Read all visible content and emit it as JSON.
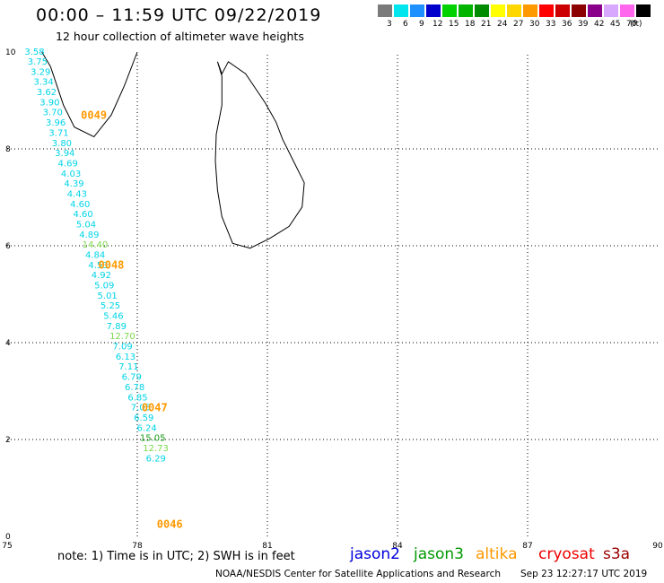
{
  "title": "00:00 – 11:59 UTC 09/22/2019",
  "subtitle": "12 hour collection of altimeter wave heights",
  "scale": {
    "unit": "(ft)",
    "steps": [
      {
        "label": "3",
        "color": "#7a7a7a"
      },
      {
        "label": "6",
        "color": "#00e5ee"
      },
      {
        "label": "9",
        "color": "#1e90ff"
      },
      {
        "label": "12",
        "color": "#0000cd"
      },
      {
        "label": "15",
        "color": "#00d200"
      },
      {
        "label": "18",
        "color": "#00b400"
      },
      {
        "label": "21",
        "color": "#008c00"
      },
      {
        "label": "24",
        "color": "#ffff00"
      },
      {
        "label": "27",
        "color": "#ffd700"
      },
      {
        "label": "30",
        "color": "#ff9900"
      },
      {
        "label": "33",
        "color": "#ff0000"
      },
      {
        "label": "36",
        "color": "#cc0000"
      },
      {
        "label": "39",
        "color": "#8b0000"
      },
      {
        "label": "42",
        "color": "#8b008b"
      },
      {
        "label": "45",
        "color": "#d8a8ff"
      },
      {
        "label": "70",
        "color": "#ff66ee"
      },
      {
        "label": "",
        "color": "#000000"
      }
    ]
  },
  "map": {
    "lon_range": [
      75,
      90
    ],
    "lat_range": [
      0,
      10
    ],
    "lon_ticks": [
      "75",
      "78",
      "81",
      "84",
      "87",
      "90"
    ],
    "lat_ticks": [
      "0",
      "2",
      "4",
      "6",
      "8",
      "10"
    ]
  },
  "wave_color_class": {
    "cyan": "#00d4e8",
    "lightgreen": "#7ad84a",
    "green": "#1aa01a",
    "orange": "#ff9900"
  },
  "observations": [
    {
      "value": "3.58",
      "lon": 75.4,
      "lat": 9.94,
      "class": "cyan"
    },
    {
      "value": "3.75",
      "lon": 75.47,
      "lat": 9.74,
      "class": "cyan"
    },
    {
      "value": "3.29",
      "lon": 75.54,
      "lat": 9.53,
      "class": "cyan"
    },
    {
      "value": "3.34",
      "lon": 75.61,
      "lat": 9.32,
      "class": "cyan"
    },
    {
      "value": "3.62",
      "lon": 75.68,
      "lat": 9.11,
      "class": "cyan"
    },
    {
      "value": "3.90",
      "lon": 75.75,
      "lat": 8.9,
      "class": "cyan"
    },
    {
      "value": "3.70",
      "lon": 75.82,
      "lat": 8.69,
      "class": "cyan"
    },
    {
      "value": "3.96",
      "lon": 75.89,
      "lat": 8.48,
      "class": "cyan"
    },
    {
      "value": "3.71",
      "lon": 75.96,
      "lat": 8.27,
      "class": "cyan"
    },
    {
      "value": "3.80",
      "lon": 76.03,
      "lat": 8.06,
      "class": "cyan"
    },
    {
      "value": "3.94",
      "lon": 76.1,
      "lat": 7.85,
      "class": "cyan"
    },
    {
      "value": "4.69",
      "lon": 76.17,
      "lat": 7.64,
      "class": "cyan"
    },
    {
      "value": "4.03",
      "lon": 76.24,
      "lat": 7.43,
      "class": "cyan"
    },
    {
      "value": "4.39",
      "lon": 76.31,
      "lat": 7.22,
      "class": "cyan"
    },
    {
      "value": "4.43",
      "lon": 76.38,
      "lat": 7.01,
      "class": "cyan"
    },
    {
      "value": "4.60",
      "lon": 76.45,
      "lat": 6.8,
      "class": "cyan"
    },
    {
      "value": "4.60",
      "lon": 76.52,
      "lat": 6.59,
      "class": "cyan"
    },
    {
      "value": "5.04",
      "lon": 76.59,
      "lat": 6.38,
      "class": "cyan"
    },
    {
      "value": "4.89",
      "lon": 76.66,
      "lat": 6.17,
      "class": "cyan"
    },
    {
      "value": "14.40",
      "lon": 76.73,
      "lat": 5.96,
      "class": "lightgreen"
    },
    {
      "value": "4.84",
      "lon": 76.8,
      "lat": 5.75,
      "class": "cyan"
    },
    {
      "value": "4.53",
      "lon": 76.87,
      "lat": 5.54,
      "class": "cyan"
    },
    {
      "value": "4.92",
      "lon": 76.94,
      "lat": 5.33,
      "class": "cyan"
    },
    {
      "value": "5.09",
      "lon": 77.01,
      "lat": 5.12,
      "class": "cyan"
    },
    {
      "value": "5.01",
      "lon": 77.08,
      "lat": 4.91,
      "class": "cyan"
    },
    {
      "value": "5.25",
      "lon": 77.15,
      "lat": 4.7,
      "class": "cyan"
    },
    {
      "value": "5.46",
      "lon": 77.22,
      "lat": 4.49,
      "class": "cyan"
    },
    {
      "value": "7.89",
      "lon": 77.29,
      "lat": 4.28,
      "class": "cyan"
    },
    {
      "value": "12.70",
      "lon": 77.36,
      "lat": 4.07,
      "class": "lightgreen"
    },
    {
      "value": "7.09",
      "lon": 77.43,
      "lat": 3.86,
      "class": "cyan"
    },
    {
      "value": "6.13",
      "lon": 77.5,
      "lat": 3.65,
      "class": "cyan"
    },
    {
      "value": "7.11",
      "lon": 77.57,
      "lat": 3.44,
      "class": "cyan"
    },
    {
      "value": "6.79",
      "lon": 77.64,
      "lat": 3.23,
      "class": "cyan"
    },
    {
      "value": "6.78",
      "lon": 77.71,
      "lat": 3.02,
      "class": "cyan"
    },
    {
      "value": "6.85",
      "lon": 77.78,
      "lat": 2.81,
      "class": "cyan"
    },
    {
      "value": "7.05",
      "lon": 77.85,
      "lat": 2.6,
      "class": "cyan"
    },
    {
      "value": "6.59",
      "lon": 77.92,
      "lat": 2.39,
      "class": "cyan"
    },
    {
      "value": "6.24",
      "lon": 77.99,
      "lat": 2.18,
      "class": "cyan"
    },
    {
      "value": "15.05",
      "lon": 78.06,
      "lat": 1.97,
      "class": "green"
    },
    {
      "value": "12.73",
      "lon": 78.13,
      "lat": 1.76,
      "class": "lightgreen"
    },
    {
      "value": "6.29",
      "lon": 78.2,
      "lat": 1.55,
      "class": "cyan"
    }
  ],
  "time_marks": [
    {
      "label": "0049",
      "lon": 76.7,
      "lat": 8.62
    },
    {
      "label": "0048",
      "lon": 77.1,
      "lat": 5.53
    },
    {
      "label": "0047",
      "lon": 78.1,
      "lat": 2.58
    },
    {
      "label": "0046",
      "lon": 78.45,
      "lat": 0.18
    }
  ],
  "footer": {
    "note": "note:  1) Time is in UTC;  2) SWH is in feet",
    "satellites": [
      {
        "name": "jason2",
        "color": "#0000dd"
      },
      {
        "name": "jason3",
        "color": "#009900"
      },
      {
        "name": "altika",
        "color": "#ff9900"
      },
      {
        "name": "cryosat",
        "color": "#ee0000"
      },
      {
        "name": "s3a",
        "color": "#990000"
      }
    ],
    "credit": "NOAA/NESDIS Center for Satellite Applications and Research",
    "timestamp": "Sep 23 12:27:17 UTC 2019"
  }
}
